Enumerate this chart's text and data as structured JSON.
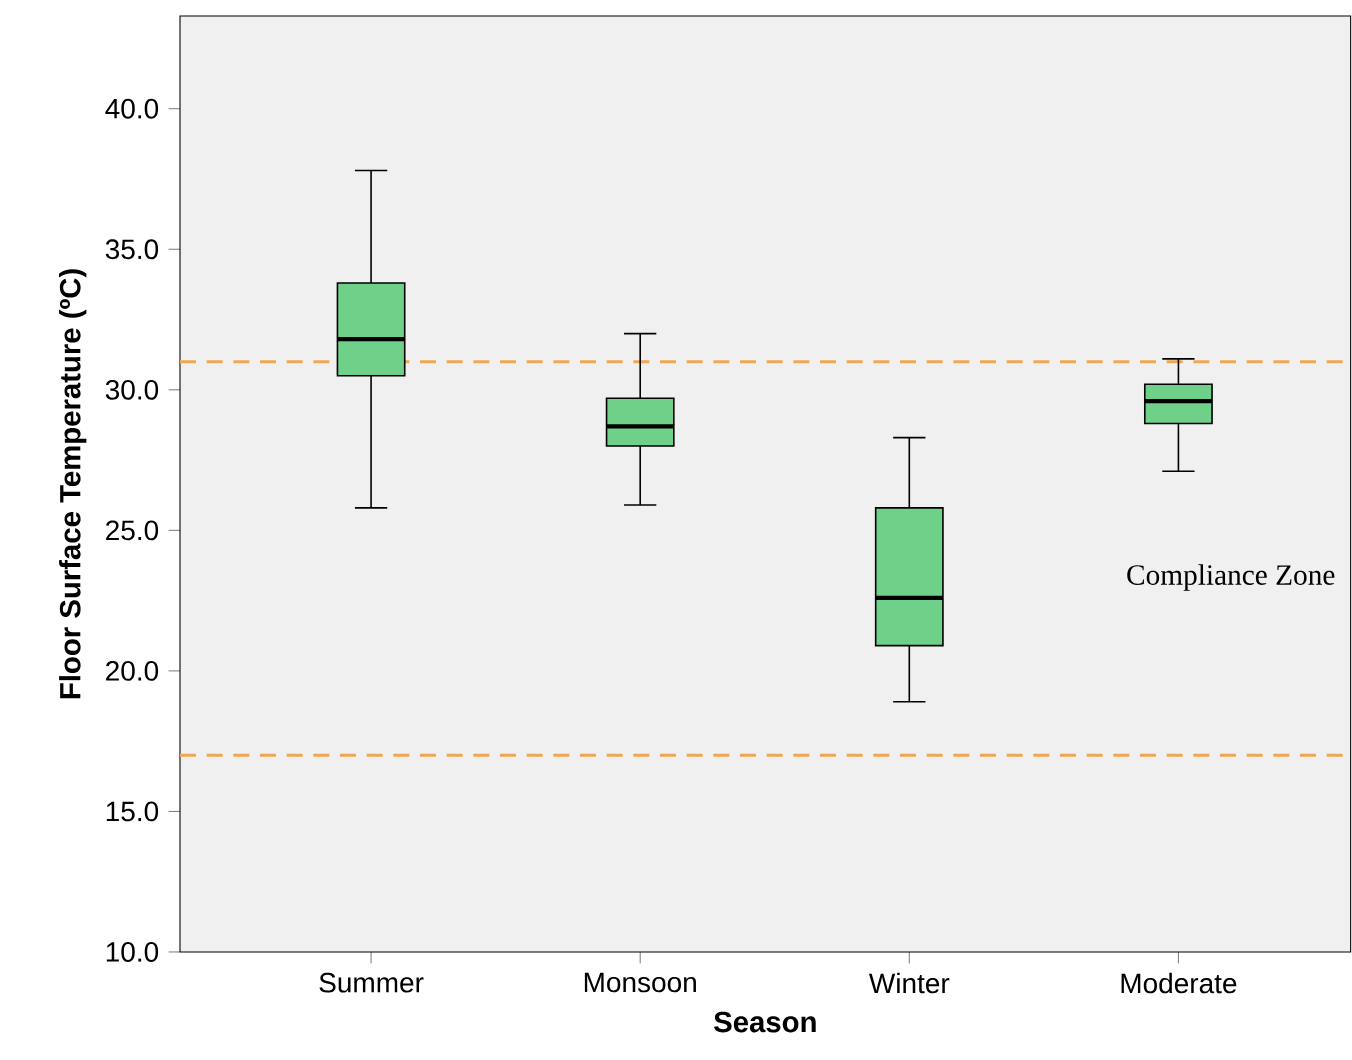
{
  "chart_data": {
    "type": "box",
    "xlabel": "Season",
    "ylabel": "Floor Surface Temperature (ºC)",
    "categories": [
      "Summer",
      "Monsoon",
      "Winter",
      "Moderate"
    ],
    "boxes": [
      {
        "low": 25.8,
        "q1": 30.5,
        "median": 31.8,
        "q3": 33.8,
        "high": 37.8
      },
      {
        "low": 25.9,
        "q1": 28.0,
        "median": 28.7,
        "q3": 29.7,
        "high": 32.0
      },
      {
        "low": 18.9,
        "q1": 20.9,
        "median": 22.6,
        "q3": 25.8,
        "high": 28.3
      },
      {
        "low": 27.1,
        "q1": 28.8,
        "median": 29.6,
        "q3": 30.2,
        "high": 31.1
      }
    ],
    "color": "#6fd08a",
    "ylim": [
      10,
      43.3
    ],
    "yticks": [
      {
        "value": 10,
        "label": "10.0"
      },
      {
        "value": 15,
        "label": "15.0"
      },
      {
        "value": 20,
        "label": "20.0"
      },
      {
        "value": 25,
        "label": "25.0"
      },
      {
        "value": 30,
        "label": "30.0"
      },
      {
        "value": 35,
        "label": "35.0"
      },
      {
        "value": 40,
        "label": "40.0"
      }
    ],
    "ref_lines": [
      {
        "axis": "y",
        "value": 31,
        "color": "#f0a850",
        "line_style": "dashed"
      },
      {
        "axis": "y",
        "value": 17,
        "color": "#f0a850",
        "line_style": "dashed"
      }
    ],
    "annotations": [
      "Compliance Zone"
    ]
  }
}
